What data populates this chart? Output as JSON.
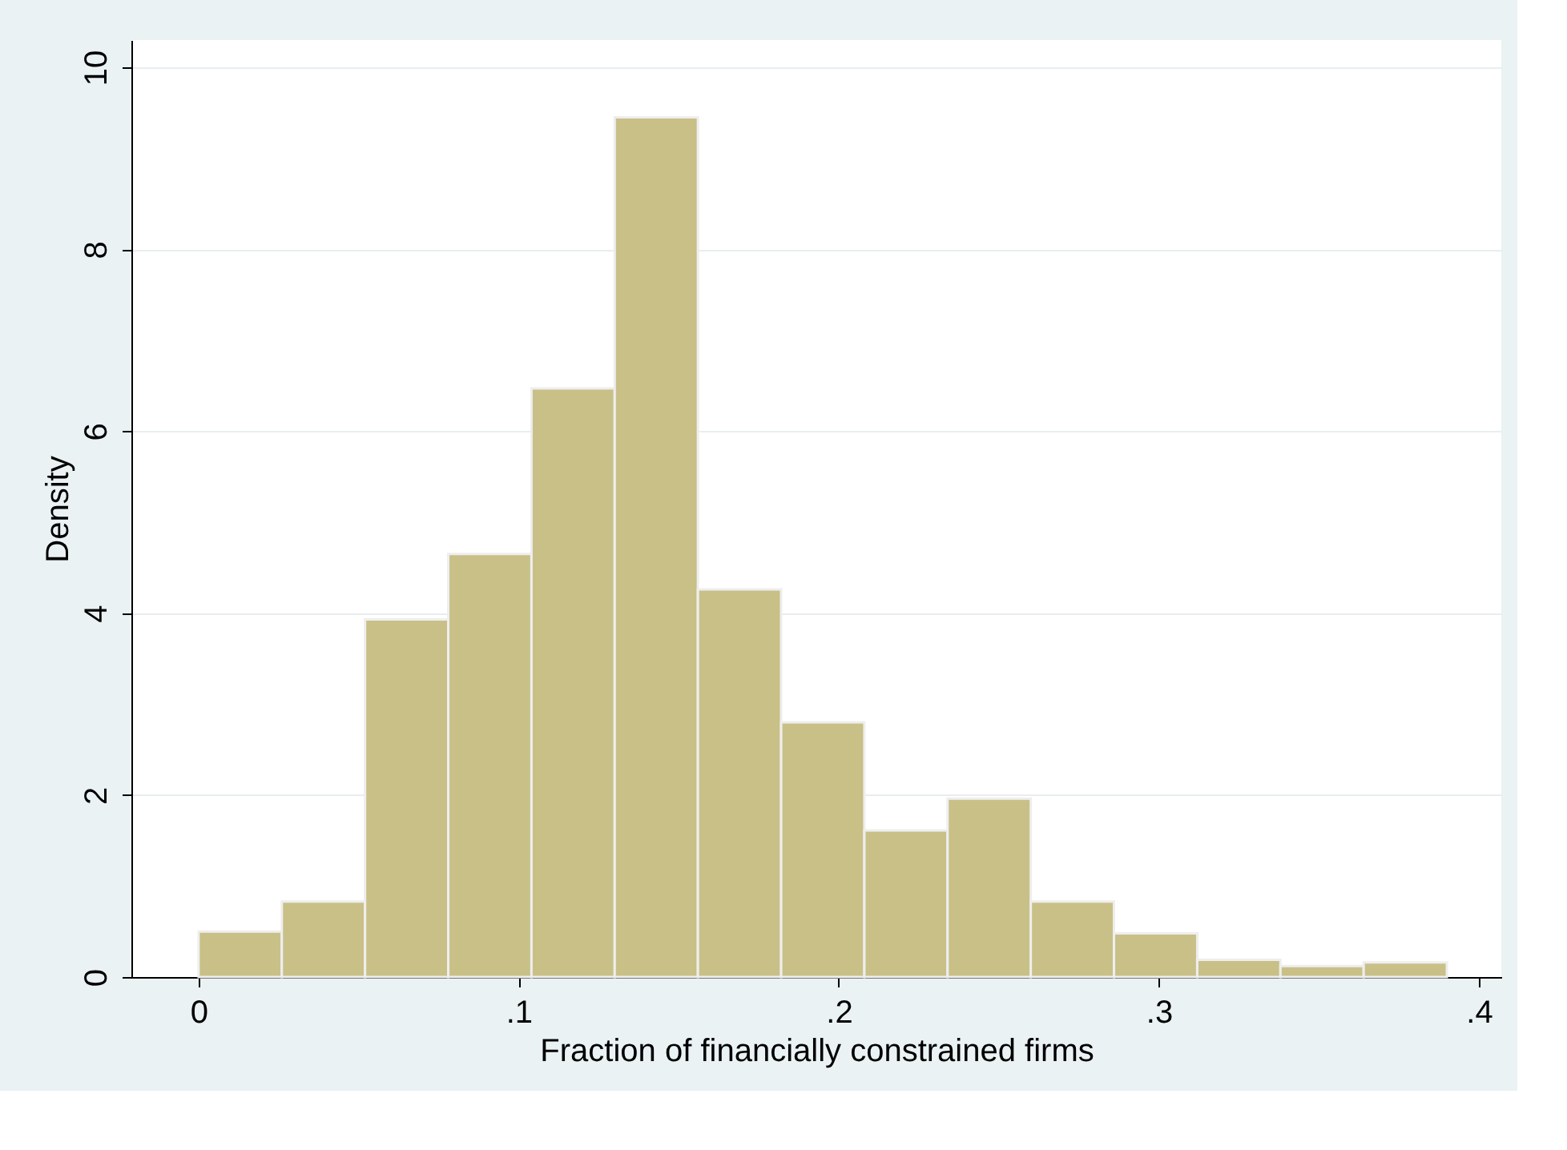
{
  "chart_data": {
    "type": "histogram",
    "xlabel": "Fraction of financially constrained firms",
    "ylabel": "Density",
    "bins": [
      0,
      0.026,
      0.052,
      0.078,
      0.104,
      0.13,
      0.156,
      0.182,
      0.208,
      0.234,
      0.26,
      0.286,
      0.312,
      0.338,
      0.364,
      0.39
    ],
    "values": [
      0.5,
      0.83,
      3.93,
      4.65,
      6.47,
      9.45,
      4.26,
      2.8,
      1.61,
      1.96,
      0.83,
      0.48,
      0.19,
      0.12,
      0.16
    ],
    "color": "#c9c088",
    "xlim": [
      -0.021,
      0.407
    ],
    "xticks": [
      {
        "value": 0,
        "label": "0"
      },
      {
        "value": 0.1,
        "label": ".1"
      },
      {
        "value": 0.2,
        "label": ".2"
      },
      {
        "value": 0.3,
        "label": ".3"
      },
      {
        "value": 0.4,
        "label": ".4"
      }
    ],
    "ylim": [
      0,
      10.3
    ],
    "yticks": [
      0,
      2,
      4,
      6,
      8,
      10
    ],
    "grid": "y"
  }
}
